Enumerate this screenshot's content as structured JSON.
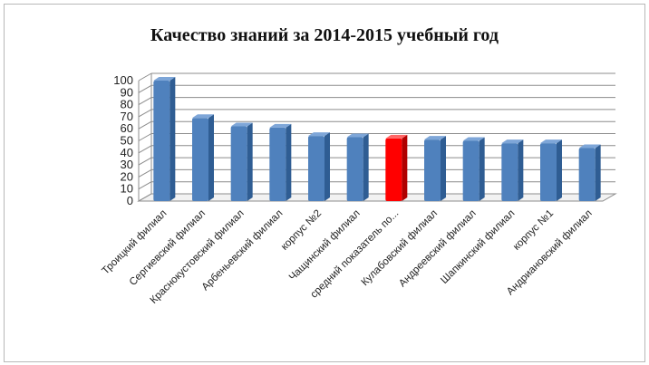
{
  "chart_data": {
    "type": "bar",
    "title": "Качество знаний за 2014-2015 учебный год",
    "categories": [
      "Троицкий филиал",
      "Сергиевский филиал",
      "Краснокустовский филиал",
      "Арбеньевский филиал",
      "корпус №2",
      "Чащинский филиал",
      "средний показатель по...",
      "Кулабовский филиал",
      "Андреевский филиал",
      "Шапкинский филиал",
      "корпус №1",
      "Андриановский филиал"
    ],
    "series": [
      {
        "values": [
          100,
          69,
          62,
          61,
          54,
          53,
          52,
          51,
          50,
          48,
          48,
          44
        ]
      }
    ],
    "highlight_index": 6,
    "ylim": [
      0,
      100
    ],
    "yticks": [
      0,
      10,
      20,
      30,
      40,
      50,
      60,
      70,
      80,
      90,
      100
    ],
    "grid": true,
    "legend": "none",
    "colors": {
      "bar": "#4f81bd",
      "bar_dark": "#2f5d93",
      "bar_top": "#7ea6d8",
      "highlight": "#ff0000",
      "highlight_dark": "#b00000",
      "highlight_top": "#ff6666",
      "grid": "#8c8c8c"
    }
  }
}
